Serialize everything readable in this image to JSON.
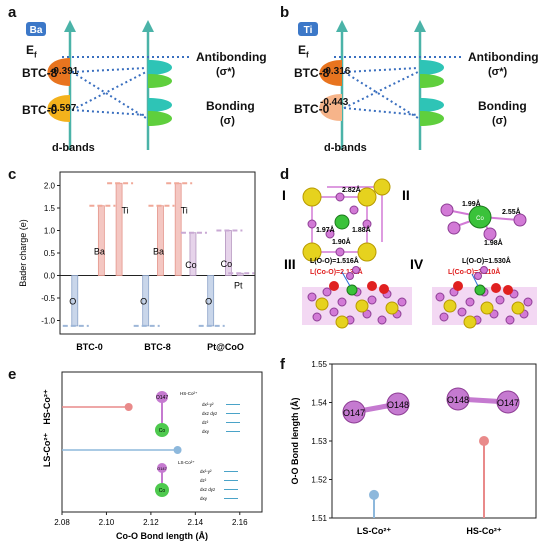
{
  "panel_a": {
    "letter": "a",
    "element_badge": "Ba",
    "fermi": "E",
    "fermi_sub": "f",
    "levels": [
      {
        "label": "BTC-8",
        "value": "-0.391"
      },
      {
        "label": "BTC-0",
        "value": "-0.597"
      }
    ],
    "antibonding": "Antibonding",
    "antibonding_sym": "(σ*)",
    "bonding": "Bonding",
    "bonding_sym": "(σ)",
    "footer": "d-bands",
    "colors": {
      "top_lobe": "#e8741f",
      "bottom_lobe": "#f3b21c",
      "orbital_top": "#2ec4b6",
      "orbital_bottom": "#5fcf3d",
      "arrow": "#4bb3a8",
      "badge": "#3c78c8"
    }
  },
  "panel_b": {
    "letter": "b",
    "element_badge": "Ti",
    "fermi": "E",
    "fermi_sub": "f",
    "levels": [
      {
        "label": "BTC-8",
        "value": "-0.316"
      },
      {
        "label": "BTC-0",
        "value": "-0.443"
      }
    ],
    "antibonding": "Antibonding",
    "antibonding_sym": "(σ*)",
    "bonding": "Bonding",
    "bonding_sym": "(σ)",
    "footer": "d-bands",
    "colors": {
      "top_lobe": "#e8741f",
      "bottom_lobe": "#f6b48a"
    }
  },
  "panel_c": {
    "letter": "c",
    "chart_data": {
      "type": "bar",
      "ylabel": "Bader charge (e)",
      "ylim": [
        -1.3,
        2.3
      ],
      "yticks": [
        "2.0",
        "1.5",
        "1.0",
        "0.5",
        "0.0",
        "-0.5",
        "-1.0"
      ],
      "ytick_values": [
        2.0,
        1.5,
        1.0,
        0.5,
        0.0,
        -0.5,
        -1.0
      ],
      "categories": [
        "BTC-0",
        "BTC-8",
        "Pt@CoO"
      ],
      "bars": [
        {
          "label": "Ba",
          "value": 1.55,
          "x": 0.7
        },
        {
          "label": "Ti",
          "value": 2.05,
          "x": 1.0
        },
        {
          "label": "O",
          "value": -1.12,
          "x": 0.25
        },
        {
          "label": "Ba",
          "value": 1.55,
          "x": 1.7
        },
        {
          "label": "Ti",
          "value": 2.05,
          "x": 2.0
        },
        {
          "label": "Co",
          "value": 0.95,
          "x": 2.25
        },
        {
          "label": "O",
          "value": -1.12,
          "x": 1.45
        },
        {
          "label": "Co",
          "value": 1.0,
          "x": 2.85
        },
        {
          "label": "Pt",
          "value": 0.05,
          "x": 3.05
        },
        {
          "label": "O",
          "value": -1.12,
          "x": 2.55
        }
      ],
      "category_x": [
        0.5,
        1.65,
        2.8
      ]
    }
  },
  "panel_d": {
    "letter": "d",
    "roman": [
      "I",
      "II",
      "III",
      "IV"
    ],
    "distances_I": [
      "2.82Å",
      "1.97Å",
      "1.88Å",
      "1.90Å"
    ],
    "distances_II": [
      "1.99Å",
      "2.55Å",
      "1.98Å"
    ],
    "co_label": "Co",
    "III_oo": "L(O-O)=1.516Å",
    "III_coo": "L(Co-O)=2.132Å",
    "IV_oo": "L(O-O)=1.530Å",
    "IV_coo": "L(Co-O)=2.110Å"
  },
  "panel_e": {
    "letter": "e",
    "chart_data": {
      "type": "lollipop",
      "xlabel": "Co-O Bond length (Å)",
      "xlim": [
        2.08,
        2.17
      ],
      "xticks": [
        "2.08",
        "2.10",
        "2.12",
        "2.14",
        "2.16"
      ],
      "xtick_values": [
        2.08,
        2.1,
        2.12,
        2.14,
        2.16
      ],
      "categories": [
        "HS-Co²⁺",
        "LS-Co²⁺"
      ],
      "values": [
        2.11,
        2.132
      ],
      "colors": [
        "#e98a8a",
        "#8db8dc"
      ]
    },
    "hs_title": "HS-Co²⁺",
    "ls_title": "LS-Co²⁺",
    "hs_orbitals": [
      "dx²-y²",
      "dxz dyz",
      "dz²",
      "dxy"
    ],
    "ls_orbitals": [
      "dx²-y²",
      "dz²",
      "dxz dyz",
      "dxy"
    ],
    "atom_o": "O147",
    "atom_co": "Co",
    "atom_o2": "O147"
  },
  "panel_f": {
    "letter": "f",
    "chart_data": {
      "type": "lollipop",
      "ylabel": "O-O Bond length (Å)",
      "ylim": [
        1.51,
        1.55
      ],
      "yticks": [
        "1.55",
        "1.54",
        "1.53",
        "1.52",
        "1.51"
      ],
      "ytick_values": [
        1.55,
        1.54,
        1.53,
        1.52,
        1.51
      ],
      "categories": [
        "LS-Co²⁺",
        "HS-Co²⁺"
      ],
      "values": [
        1.516,
        1.53
      ],
      "colors": [
        "#8db8dc",
        "#e98a8a"
      ]
    },
    "atoms_left": [
      "O147",
      "O148"
    ],
    "atoms_right": [
      "O148",
      "O147"
    ]
  }
}
